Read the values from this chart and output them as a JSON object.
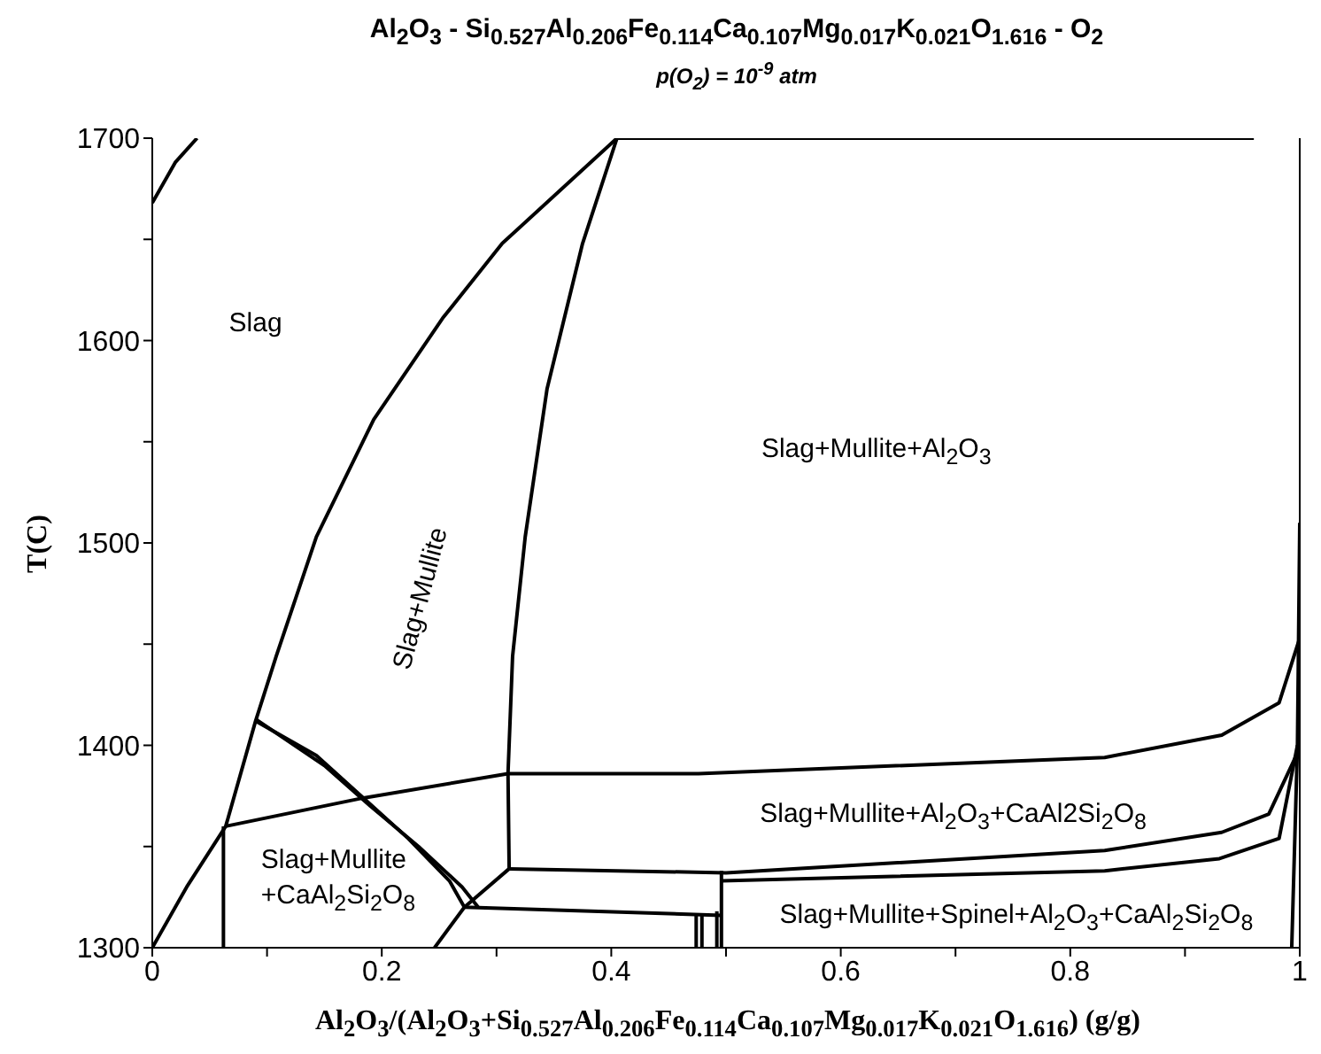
{
  "chart_data": {
    "type": "line",
    "title": "Al$_{2}$O$_{3}$ - Si$_{0.527}$Al$_{0.206}$Fe$_{0.114}$Ca$_{0.107}$Mg$_{0.017}$K$_{0.021}$O$_{1.616}$ - O$_{2}$",
    "subtitle": "p(O$_{2}$) = 10$^{-9}$ atm",
    "xlabel": "Al$_{2}$O$_{3}$/(Al$_{2}$O$_{3}$+Si$_{0.527}$Al$_{0.206}$Fe$_{0.114}$Ca$_{0.107}$Mg$_{0.017}$K$_{0.021}$O$_{1.616}$) (g/g)",
    "ylabel": "T(C)",
    "xlim": [
      0,
      1
    ],
    "ylim": [
      1300,
      1700
    ],
    "xticks": [
      0,
      {
        "value": 0.1,
        "label": null
      },
      0.2,
      {
        "value": 0.3,
        "label": null
      },
      0.4,
      {
        "value": 0.5,
        "label": null
      },
      0.6,
      {
        "value": 0.7,
        "label": null
      },
      0.8,
      {
        "value": 0.9,
        "label": null
      },
      1
    ],
    "yticks": [
      1300,
      {
        "value": 1350,
        "label": null
      },
      1400,
      {
        "value": 1450,
        "label": null
      },
      1500,
      {
        "value": 1550,
        "label": null
      },
      1600,
      {
        "value": 1650,
        "label": null
      },
      1700
    ],
    "marker": "none",
    "line_style": "solid",
    "series": [
      {
        "color": "#000000",
        "x": [
          0,
          0.02,
          0.039
        ],
        "values": [
          1668,
          1688,
          1700
        ]
      },
      {
        "color": "#000000",
        "x": [
          0,
          0.03,
          0.064,
          0.09,
          0.108,
          0.143,
          0.193,
          0.253,
          0.305,
          0.405
        ],
        "values": [
          1300,
          1330,
          1360,
          1412,
          1444,
          1503,
          1561,
          1611,
          1648,
          1700
        ]
      },
      {
        "color": "#000000",
        "x": [
          0.405,
          0.375,
          0.344,
          0.325,
          0.314,
          0.31,
          0.311
        ],
        "values": [
          1700,
          1648,
          1576,
          1503,
          1444,
          1386,
          1339
        ]
      },
      {
        "color": "#000000",
        "x": [
          0.405,
          0.96
        ],
        "values": [
          1700,
          1700
        ]
      },
      {
        "color": "#000000",
        "x": [
          0.064,
          0.184,
          0.31,
          0.476,
          0.83,
          0.932,
          0.982,
          1
        ],
        "values": [
          1360,
          1374,
          1386,
          1386,
          1394,
          1405,
          1421,
          1453
        ]
      },
      {
        "color": "#000000",
        "x": [
          0.993,
          0.995,
          0.998,
          1
        ],
        "values": [
          1300,
          1340,
          1400,
          1510
        ]
      },
      {
        "color": "#000000",
        "x": [
          0.09,
          0.143,
          0.184,
          0.223,
          0.259,
          0.272,
          0.496
        ],
        "values": [
          1412,
          1395,
          1374,
          1354,
          1333,
          1320,
          1316
        ]
      },
      {
        "color": "#000000",
        "x": [
          0.09,
          0.15,
          0.19,
          0.232,
          0.27,
          0.284
        ],
        "values": [
          1413,
          1390,
          1370,
          1350,
          1330,
          1320
        ]
      },
      {
        "color": "#000000",
        "x": [
          0.246,
          0.272,
          0.311
        ],
        "values": [
          1300,
          1320,
          1339
        ]
      },
      {
        "color": "#000000",
        "x": [
          0.311,
          0.5,
          0.83,
          0.932,
          0.973,
          0.997
        ],
        "values": [
          1339,
          1337,
          1348,
          1357,
          1366,
          1395
        ]
      },
      {
        "color": "#000000",
        "x": [
          0.496,
          0.83,
          0.93,
          0.982,
          0.998
        ],
        "values": [
          1333,
          1338,
          1344,
          1354,
          1400
        ]
      },
      {
        "color": "#000000",
        "x": [
          0.062,
          0.062
        ],
        "values": [
          1300,
          1360
        ]
      },
      {
        "color": "#000000",
        "x": [
          0.474,
          0.474
        ],
        "values": [
          1300,
          1316
        ]
      },
      {
        "color": "#000000",
        "x": [
          0.479,
          0.479
        ],
        "values": [
          1300,
          1316
        ]
      },
      {
        "color": "#000000",
        "x": [
          0.492,
          0.492
        ],
        "values": [
          1300,
          1318
        ]
      },
      {
        "color": "#000000",
        "x": [
          0.496,
          0.496
        ],
        "values": [
          1300,
          1338
        ]
      }
    ],
    "annotations": [
      "Slag",
      "Slag+Mullite",
      "Slag+Mullite+Al$_{2}$O$_{3}$",
      "Slag+Mullite+Al$_{2}$O$_{3}$+CaAl2Si$_{2}$O$_{8}$",
      "Slag+Mullite\n+CaAl$_{2}$Si$_{2}$O$_{8}$",
      "Slag+Mullite+Spinel+Al$_{2}$O$_{3}$+CaAl$_{2}$Si$_{2}$O$_{8}$"
    ]
  }
}
